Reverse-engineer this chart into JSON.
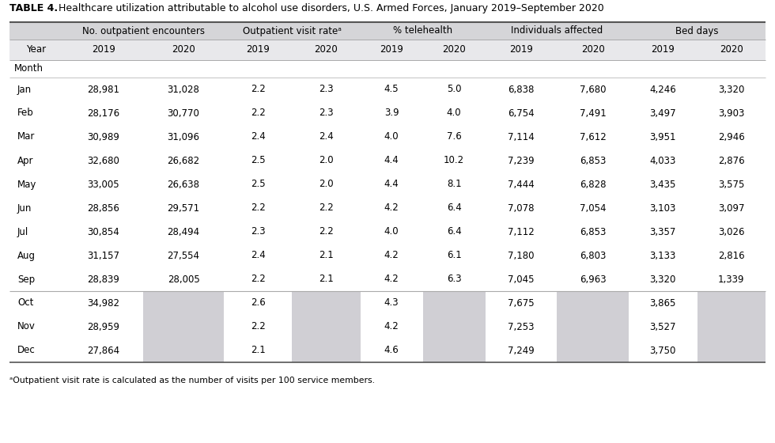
{
  "title_bold": "TABLE 4.",
  "title_rest": " Healthcare utilization attributable to alcohol use disorders, U.S. Armed Forces, January 2019–September 2020",
  "group_labels": [
    "No. outpatient encounters",
    "Outpatient visit rateᵃ",
    "% telehealth",
    "Individuals affected",
    "Bed days"
  ],
  "footnote": "ᵃOutpatient visit rate is calculated as the number of visits per 100 service members.",
  "months": [
    "Jan",
    "Feb",
    "Mar",
    "Apr",
    "May",
    "Jun",
    "Jul",
    "Aug",
    "Sep",
    "Oct",
    "Nov",
    "Dec"
  ],
  "data": {
    "no_out_2019": [
      "28,981",
      "28,176",
      "30,989",
      "32,680",
      "33,005",
      "28,856",
      "30,854",
      "31,157",
      "28,839",
      "34,982",
      "28,959",
      "27,864"
    ],
    "no_out_2020": [
      "31,028",
      "30,770",
      "31,096",
      "26,682",
      "26,638",
      "29,571",
      "28,494",
      "27,554",
      "28,005",
      "",
      "",
      ""
    ],
    "out_rate_2019": [
      "2.2",
      "2.2",
      "2.4",
      "2.5",
      "2.5",
      "2.2",
      "2.3",
      "2.4",
      "2.2",
      "2.6",
      "2.2",
      "2.1"
    ],
    "out_rate_2020": [
      "2.3",
      "2.3",
      "2.4",
      "2.0",
      "2.0",
      "2.2",
      "2.2",
      "2.1",
      "2.1",
      "",
      "",
      ""
    ],
    "telehealth_2019": [
      "4.5",
      "3.9",
      "4.0",
      "4.4",
      "4.4",
      "4.2",
      "4.0",
      "4.2",
      "4.2",
      "4.3",
      "4.2",
      "4.6"
    ],
    "telehealth_2020": [
      "5.0",
      "4.0",
      "7.6",
      "10.2",
      "8.1",
      "6.4",
      "6.4",
      "6.1",
      "6.3",
      "",
      "",
      ""
    ],
    "indiv_2019": [
      "6,838",
      "6,754",
      "7,114",
      "7,239",
      "7,444",
      "7,078",
      "7,112",
      "7,180",
      "7,045",
      "7,675",
      "7,253",
      "7,249"
    ],
    "indiv_2020": [
      "7,680",
      "7,491",
      "7,612",
      "6,853",
      "6,828",
      "7,054",
      "6,853",
      "6,803",
      "6,963",
      "",
      "",
      ""
    ],
    "bed_2019": [
      "4,246",
      "3,497",
      "3,951",
      "4,033",
      "3,435",
      "3,103",
      "3,357",
      "3,133",
      "3,320",
      "3,865",
      "3,527",
      "3,750"
    ],
    "bed_2020": [
      "3,320",
      "3,903",
      "2,946",
      "2,876",
      "3,575",
      "3,097",
      "3,026",
      "2,816",
      "1,339",
      "",
      "",
      ""
    ]
  },
  "col_2019_keys": [
    "no_out_2019",
    "out_rate_2019",
    "telehealth_2019",
    "indiv_2019",
    "bed_2019"
  ],
  "col_2020_keys": [
    "no_out_2020",
    "out_rate_2020",
    "telehealth_2020",
    "indiv_2020",
    "bed_2020"
  ],
  "bg_group_header": "#d5d5d8",
  "bg_year_header": "#e8e8eb",
  "bg_gray_cell": "#d0cfd4",
  "bg_white": "#ffffff",
  "line_color_heavy": "#555555",
  "line_color_light": "#aaaaaa",
  "font_size_title": 9.0,
  "font_size_header": 8.5,
  "font_size_data": 8.5,
  "font_size_footnote": 7.8
}
